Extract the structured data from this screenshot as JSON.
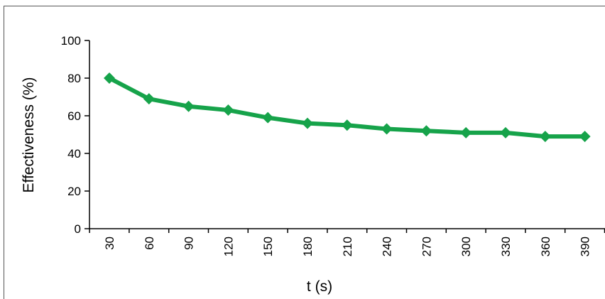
{
  "chart_data": {
    "type": "line",
    "title": "",
    "xlabel": "t (s)",
    "ylabel": "Effectiveness (%)",
    "x": [
      30,
      60,
      90,
      120,
      150,
      180,
      210,
      240,
      270,
      300,
      330,
      360,
      390
    ],
    "series": [
      {
        "values": [
          80,
          69,
          65,
          63,
          59,
          56,
          55,
          53,
          52,
          51,
          51,
          49,
          49
        ],
        "color": "#16a34a",
        "marker": "diamond"
      }
    ],
    "ylim": [
      0,
      100
    ],
    "yticks": [
      0,
      20,
      40,
      60,
      80,
      100
    ],
    "xtick_labels": [
      "30",
      "60",
      "90",
      "120",
      "150",
      "180",
      "210",
      "240",
      "270",
      "300",
      "330",
      "360",
      "390"
    ],
    "ytick_labels": [
      "0",
      "20",
      "40",
      "60",
      "80",
      "100"
    ],
    "grid": false,
    "legend": "none"
  }
}
